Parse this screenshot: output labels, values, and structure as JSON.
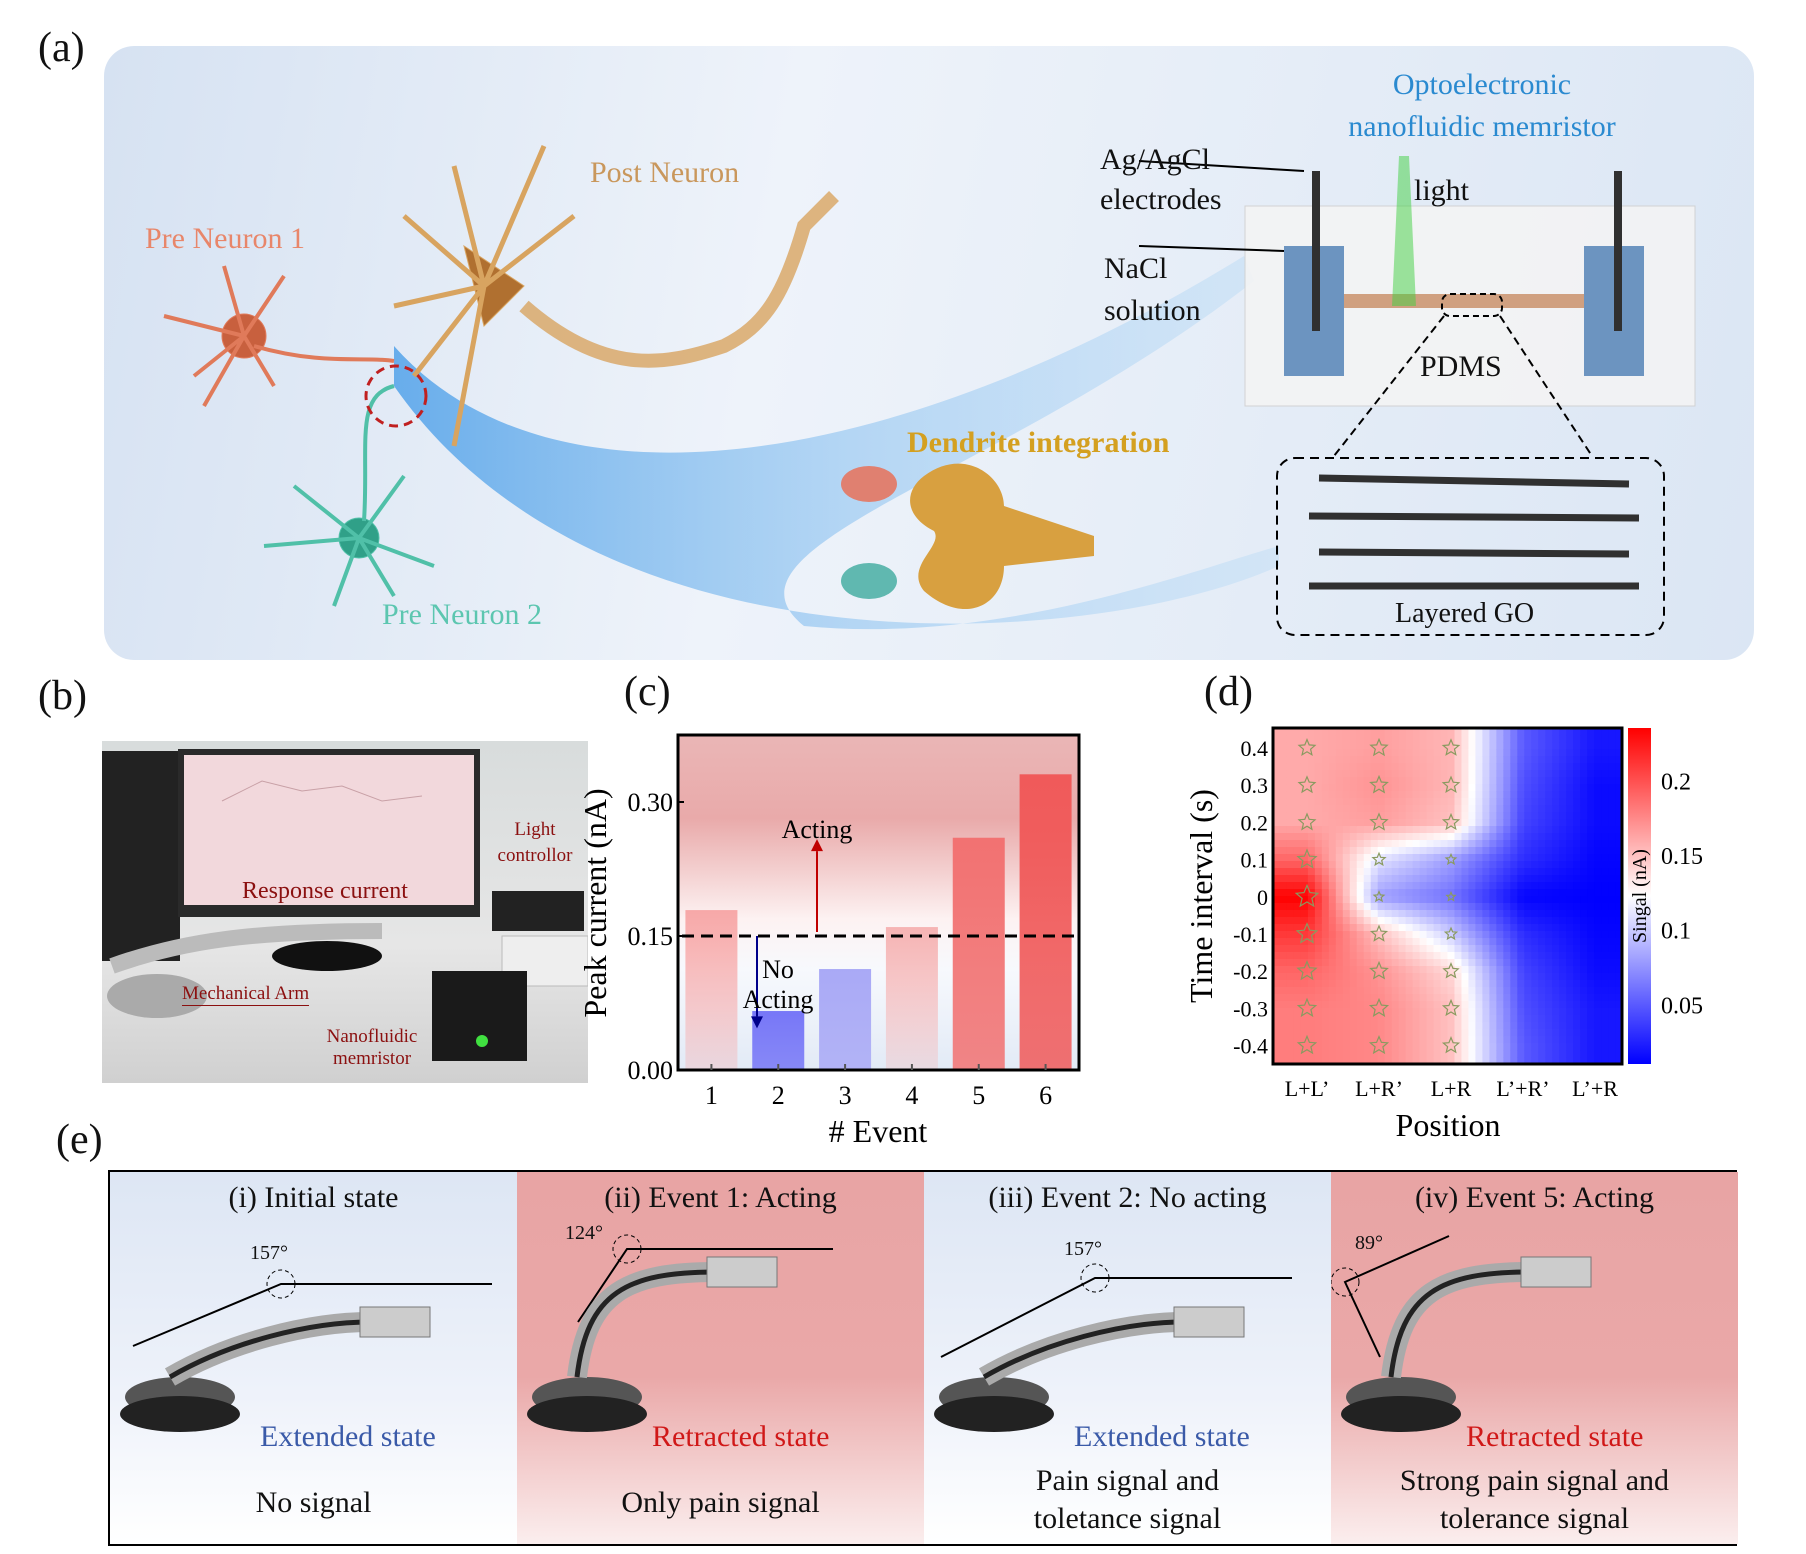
{
  "panel_labels": {
    "a": "(a)",
    "b": "(b)",
    "c": "(c)",
    "d": "(d)",
    "e": "(e)"
  },
  "panel_a": {
    "pre_neuron_1": "Pre Neuron 1",
    "post_neuron": "Post Neuron",
    "pre_neuron_2": "Pre Neuron 2",
    "dendrite": "Dendrite integration",
    "device_title_1": "Optoelectronic",
    "device_title_2": "nanofluidic memristor",
    "electrodes_1": "Ag/AgCl",
    "electrodes_2": "electrodes",
    "light": "light",
    "nacl_1": "NaCl",
    "nacl_2": "solution",
    "pdms": "PDMS",
    "go": "Layered GO",
    "colors": {
      "pre1": "#e8866a",
      "post": "#c9975c",
      "pre2": "#5cc6b0",
      "dendrite": "#d4a020",
      "device": "#2a8ad0"
    }
  },
  "panel_b": {
    "response": "Response current",
    "light_1": "Light",
    "light_2": "controllor",
    "arm": "Mechanical Arm",
    "memristor_1": "Nanofluidic",
    "memristor_2": "memristor",
    "label_color": "#8b1010"
  },
  "chart_data": [
    {
      "type": "bar",
      "categories": [
        "1",
        "2",
        "3",
        "4",
        "5",
        "6"
      ],
      "values": [
        0.179,
        0.066,
        0.113,
        0.16,
        0.26,
        0.331
      ],
      "bar_colors": [
        "#f7a8a8",
        "#7777f7",
        "#a9a9f6",
        "#f6b4b4",
        "#f27272",
        "#f05a5a"
      ],
      "xlabel": "# Event",
      "ylabel": "Peak current (nA)",
      "yticks": [
        "0.00",
        "0.15",
        "0.30"
      ],
      "ylim": [
        0,
        0.375
      ],
      "threshold": 0.15,
      "annotations": {
        "acting": "Acting",
        "no_acting_1": "No",
        "no_acting_2": "Acting"
      }
    },
    {
      "type": "heatmap",
      "x_categories": [
        "L+L’",
        "L+R’",
        "L+R",
        "L’+R’",
        "L’+R"
      ],
      "y_values": [
        "0.4",
        "0.3",
        "0.2",
        "0.1",
        "0",
        "-0.1",
        "-0.2",
        "-0.3",
        "-0.4"
      ],
      "xlabel": "Position",
      "ylabel": "Time interval (s)",
      "colorbar_label": "Singal (nA)",
      "colorbar_ticks": [
        "0.2",
        "0.15",
        "0.1",
        "0.05"
      ],
      "colorbar_range": [
        0.01,
        0.235
      ],
      "colormap": [
        "#0000ff",
        "#ffffff",
        "#ff0000"
      ],
      "values": [
        [
          0.16,
          0.165,
          0.155,
          0.05,
          0.02
        ],
        [
          0.16,
          0.17,
          0.155,
          0.045,
          0.015
        ],
        [
          0.16,
          0.165,
          0.15,
          0.04,
          0.015
        ],
        [
          0.19,
          0.11,
          0.08,
          0.03,
          0.012
        ],
        [
          0.235,
          0.08,
          0.06,
          0.012,
          0.01
        ],
        [
          0.21,
          0.15,
          0.1,
          0.03,
          0.012
        ],
        [
          0.19,
          0.17,
          0.14,
          0.04,
          0.015
        ],
        [
          0.18,
          0.175,
          0.15,
          0.045,
          0.02
        ],
        [
          0.18,
          0.175,
          0.15,
          0.05,
          0.02
        ]
      ]
    }
  ],
  "panel_e": {
    "cells": [
      {
        "title": "(i) Initial state",
        "angle": "157°",
        "state": "Extended state",
        "state_color": "#3a5aa8",
        "bottom": [
          "No signal"
        ],
        "bg": "blue"
      },
      {
        "title": "(ii) Event 1: Acting",
        "angle": "124°",
        "state": "Retracted state",
        "state_color": "#d01818",
        "bottom": [
          "Only pain signal"
        ],
        "bg": "red"
      },
      {
        "title": "(iii) Event 2:  No acting",
        "angle": "157°",
        "state": "Extended state",
        "state_color": "#3a5aa8",
        "bottom": [
          "Pain signal and",
          "toletance signal"
        ],
        "bg": "blue"
      },
      {
        "title": "(iv) Event 5:  Acting",
        "angle": "89°",
        "state": "Retracted state",
        "state_color": "#d01818",
        "bottom": [
          "Strong pain signal and",
          "tolerance signal"
        ],
        "bg": "red"
      }
    ]
  }
}
